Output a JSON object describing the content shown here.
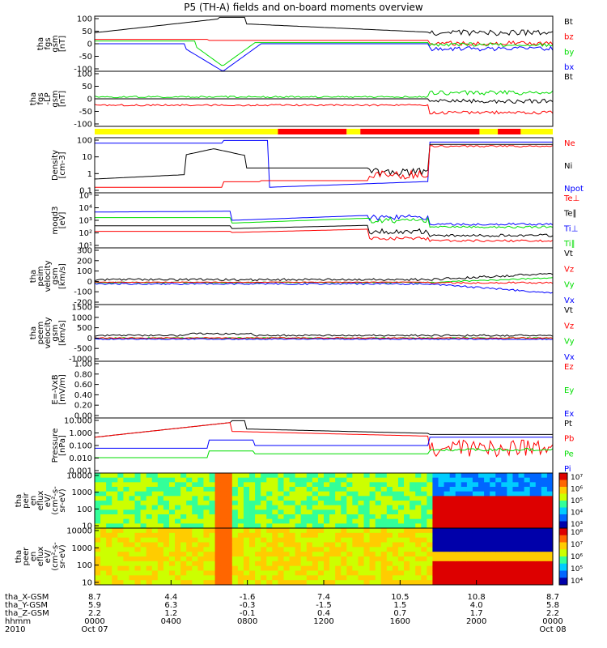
{
  "title": "P5 (TH-A) fields and on-board moments overview",
  "colors": {
    "black": "#000000",
    "red": "#ff0000",
    "green": "#00dd00",
    "blue": "#0000ff",
    "yellow": "#ffff00"
  },
  "chart_data": [
    {
      "type": "line",
      "id": "fgs",
      "ylabel": [
        "tha",
        "fgs",
        "gsm",
        "[nT]"
      ],
      "yticks": [
        "100",
        "50",
        "0",
        "-50",
        "-100"
      ],
      "legend": [
        {
          "name": "Bt",
          "color": "black"
        },
        {
          "name": "bz",
          "color": "red"
        },
        {
          "name": "by",
          "color": "green"
        },
        {
          "name": "bx",
          "color": "blue"
        }
      ]
    },
    {
      "type": "line",
      "id": "fgs_lp",
      "ylabel": [
        "tha",
        "fgs",
        "-LP",
        "gsm",
        "[nT]"
      ],
      "yticks": [
        "100",
        "50",
        "0",
        "-50",
        "-100"
      ],
      "legend": [
        {
          "name": "Bt",
          "color": "black"
        }
      ]
    },
    {
      "type": "line",
      "id": "density",
      "ylabel": [
        "Density",
        "[cm-3]"
      ],
      "log": true,
      "yticks": [
        "100",
        "10",
        "1",
        "0.1"
      ],
      "legend": [
        {
          "name": "Ne",
          "color": "red"
        },
        {
          "name": "Ni",
          "color": "black"
        },
        {
          "name": "Npot",
          "color": "blue"
        }
      ]
    },
    {
      "type": "line",
      "id": "temp",
      "ylabel": [
        "moqd3",
        "[eV]"
      ],
      "log": true,
      "yticks": [
        "10⁵",
        "10⁴",
        "10³",
        "10²",
        "10¹"
      ],
      "legend": [
        {
          "name": "Te⊥",
          "color": "red"
        },
        {
          "name": "Te∥",
          "color": "black"
        },
        {
          "name": "Ti⊥",
          "color": "blue"
        },
        {
          "name": "Ti∥",
          "color": "green"
        }
      ]
    },
    {
      "type": "line",
      "id": "peim",
      "ylabel": [
        "tha",
        "peim",
        "velocity",
        "gsm",
        "[km/s]"
      ],
      "yticks": [
        "300",
        "200",
        "100",
        "0",
        "-100",
        "-200"
      ],
      "legend": [
        {
          "name": "Vt",
          "color": "black"
        },
        {
          "name": "Vz",
          "color": "red"
        },
        {
          "name": "Vy",
          "color": "green"
        },
        {
          "name": "Vx",
          "color": "blue"
        }
      ]
    },
    {
      "type": "line",
      "id": "peem",
      "ylabel": [
        "tha",
        "peem",
        "velocity",
        "gsm",
        "[km/s]"
      ],
      "yticks": [
        "1500",
        "1000",
        "500",
        "0",
        "-500",
        "-1000"
      ],
      "legend": [
        {
          "name": "Vt",
          "color": "black"
        },
        {
          "name": "Vz",
          "color": "red"
        },
        {
          "name": "Vy",
          "color": "green"
        },
        {
          "name": "Vx",
          "color": "blue"
        }
      ]
    },
    {
      "type": "line",
      "id": "efield",
      "ylabel": [
        "E=-VxB",
        "[mV/m]"
      ],
      "yticks": [
        "1.00",
        "0.80",
        "0.60",
        "0.40",
        "0.20",
        "0.00"
      ],
      "legend": [
        {
          "name": "Ez",
          "color": "red"
        },
        {
          "name": "Ey",
          "color": "green"
        },
        {
          "name": "Ex",
          "color": "blue"
        }
      ]
    },
    {
      "type": "line",
      "id": "pressure",
      "ylabel": [
        "Pressure",
        "[nPa]"
      ],
      "log": true,
      "yticks": [
        "10.000",
        "1.000",
        "0.100",
        "0.010",
        "0.001"
      ],
      "legend": [
        {
          "name": "Pt",
          "color": "black"
        },
        {
          "name": "Pb",
          "color": "red"
        },
        {
          "name": "Pe",
          "color": "green"
        },
        {
          "name": "Pi",
          "color": "blue"
        }
      ]
    },
    {
      "type": "heatmap",
      "id": "peir",
      "ylabel": [
        "tha",
        "peir",
        "en",
        "eflux",
        "eV/",
        "(cm²-s-",
        "sr-eV)"
      ],
      "yticks": [
        "10000",
        "1000",
        "100",
        "10"
      ],
      "colorbar": [
        "10⁷",
        "10⁶",
        "10⁵",
        "10⁴",
        "10³"
      ]
    },
    {
      "type": "heatmap",
      "id": "peer",
      "ylabel": [
        "tha",
        "peer",
        "en",
        "eflux",
        "eV/",
        "(cm²-s-",
        "sr-eV)"
      ],
      "yticks": [
        "10000",
        "1000",
        "100",
        "10"
      ],
      "colorbar": [
        "10⁸",
        "10⁷",
        "10⁶",
        "10⁵",
        "10⁴"
      ]
    }
  ],
  "xaxis": {
    "rows": [
      {
        "label": "tha_X-GSM",
        "values": [
          "8.7",
          "4.4",
          "-1.6",
          "7.4",
          "10.5",
          "10.8",
          "8.7"
        ]
      },
      {
        "label": "tha_Y-GSM",
        "values": [
          "5.9",
          "6.3",
          "-0.3",
          "-1.5",
          "1.5",
          "4.0",
          "5.8"
        ]
      },
      {
        "label": "tha_Z-GSM",
        "values": [
          "2.2",
          "1.2",
          "-0.1",
          "0.4",
          "0.7",
          "1.7",
          "2.2"
        ]
      },
      {
        "label": "hhmm",
        "values": [
          "0000",
          "0400",
          "0800",
          "1200",
          "1600",
          "2000",
          "0000"
        ]
      },
      {
        "label": "2010",
        "values": [
          "Oct 07",
          "",
          "",
          "",
          "",
          "",
          "Oct 08"
        ]
      }
    ]
  }
}
